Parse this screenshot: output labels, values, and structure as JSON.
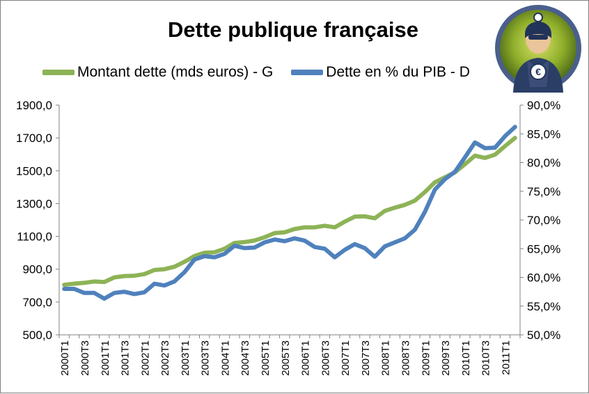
{
  "title": "Dette publique française",
  "legend": [
    {
      "label": "Montant dette (mds euros) - G",
      "color": "#8db356"
    },
    {
      "label": "Dette en % du PIB - D",
      "color": "#4f81bd"
    }
  ],
  "mascot_icon": "euro-superhero-mascot",
  "chart_data": {
    "type": "line",
    "title": "Dette publique française",
    "x": [
      "2000T1",
      "2000T2",
      "2000T3",
      "2000T4",
      "2001T1",
      "2001T2",
      "2001T3",
      "2001T4",
      "2002T1",
      "2002T2",
      "2002T3",
      "2002T4",
      "2003T1",
      "2003T2",
      "2003T3",
      "2003T4",
      "2004T1",
      "2004T2",
      "2004T3",
      "2004T4",
      "2005T1",
      "2005T2",
      "2005T3",
      "2005T4",
      "2006T1",
      "2006T2",
      "2006T3",
      "2006T4",
      "2007T1",
      "2007T2",
      "2007T3",
      "2007T4",
      "2008T1",
      "2008T2",
      "2008T3",
      "2008T4",
      "2009T1",
      "2009T2",
      "2009T3",
      "2009T4",
      "2010T1",
      "2010T2",
      "2010T3",
      "2010T4",
      "2011T1",
      "2011T2"
    ],
    "x_tick_labels": [
      "2000T1",
      "2000T3",
      "2001T1",
      "2001T3",
      "2002T1",
      "2002T3",
      "2003T1",
      "2003T3",
      "2004T1",
      "2004T3",
      "2005T1",
      "2005T3",
      "2006T1",
      "2006T3",
      "2007T1",
      "2007T3",
      "2008T1",
      "2008T3",
      "2009T1",
      "2009T3",
      "2010T1",
      "2010T3",
      "2011T1"
    ],
    "y_left": {
      "min": 500,
      "max": 1900,
      "ticks": [
        "1900,0",
        "1700,0",
        "1500,0",
        "1300,0",
        "1100,0",
        "900,0",
        "700,0",
        "500,0"
      ]
    },
    "y_right": {
      "min": 50,
      "max": 90,
      "ticks": [
        "90,0%",
        "85,0%",
        "80,0%",
        "75,0%",
        "70,0%",
        "65,0%",
        "60,0%",
        "55,0%",
        "50,0%"
      ]
    },
    "grid": false,
    "legend_position": "top",
    "series": [
      {
        "name": "Montant dette (mds euros) - G",
        "axis": "left",
        "color": "#8db356",
        "values": [
          805,
          812,
          817,
          825,
          822,
          850,
          858,
          860,
          870,
          895,
          900,
          915,
          945,
          980,
          1000,
          1003,
          1025,
          1060,
          1065,
          1075,
          1095,
          1120,
          1125,
          1145,
          1155,
          1155,
          1165,
          1155,
          1190,
          1220,
          1222,
          1210,
          1255,
          1275,
          1292,
          1318,
          1370,
          1430,
          1460,
          1490,
          1540,
          1592,
          1578,
          1598,
          1650,
          1700
        ]
      },
      {
        "name": "Dette en % du PIB - D",
        "axis": "right",
        "color": "#4f81bd",
        "values": [
          58.0,
          58.0,
          57.3,
          57.3,
          56.3,
          57.3,
          57.5,
          57.1,
          57.4,
          58.9,
          58.6,
          59.3,
          60.9,
          63.1,
          63.7,
          63.5,
          64.1,
          65.5,
          65.1,
          65.2,
          66.1,
          66.6,
          66.3,
          66.8,
          66.4,
          65.3,
          65.0,
          63.5,
          64.8,
          65.8,
          65.1,
          63.6,
          65.4,
          66.1,
          66.8,
          68.3,
          71.4,
          75.3,
          77.1,
          78.4,
          80.9,
          83.5,
          82.5,
          82.6,
          84.6,
          86.2
        ]
      }
    ]
  }
}
